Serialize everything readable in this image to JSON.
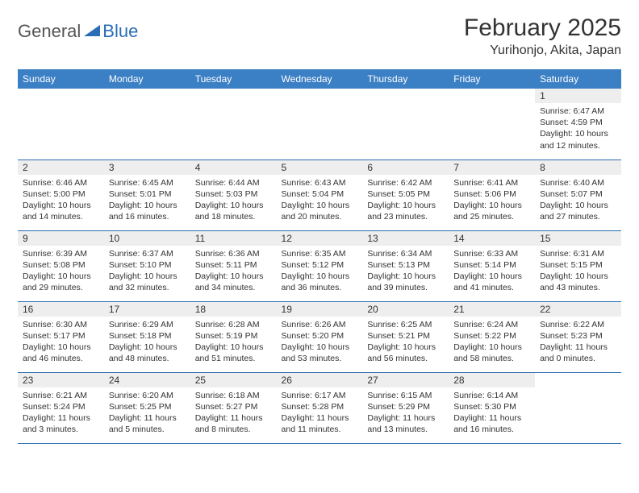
{
  "logo": {
    "text_general": "General",
    "text_blue": "Blue",
    "accent_color": "#2a6db5",
    "text_color": "#555555"
  },
  "header": {
    "title": "February 2025",
    "location": "Yurihonjo, Akita, Japan"
  },
  "calendar": {
    "header_bg": "#3b7fc4",
    "header_fg": "#ffffff",
    "daynum_bg": "#eeeeee",
    "border_color": "#2a6db5",
    "day_names": [
      "Sunday",
      "Monday",
      "Tuesday",
      "Wednesday",
      "Thursday",
      "Friday",
      "Saturday"
    ],
    "weeks": [
      [
        {
          "num": "",
          "sunrise": "",
          "sunset": "",
          "daylight": ""
        },
        {
          "num": "",
          "sunrise": "",
          "sunset": "",
          "daylight": ""
        },
        {
          "num": "",
          "sunrise": "",
          "sunset": "",
          "daylight": ""
        },
        {
          "num": "",
          "sunrise": "",
          "sunset": "",
          "daylight": ""
        },
        {
          "num": "",
          "sunrise": "",
          "sunset": "",
          "daylight": ""
        },
        {
          "num": "",
          "sunrise": "",
          "sunset": "",
          "daylight": ""
        },
        {
          "num": "1",
          "sunrise": "Sunrise: 6:47 AM",
          "sunset": "Sunset: 4:59 PM",
          "daylight": "Daylight: 10 hours and 12 minutes."
        }
      ],
      [
        {
          "num": "2",
          "sunrise": "Sunrise: 6:46 AM",
          "sunset": "Sunset: 5:00 PM",
          "daylight": "Daylight: 10 hours and 14 minutes."
        },
        {
          "num": "3",
          "sunrise": "Sunrise: 6:45 AM",
          "sunset": "Sunset: 5:01 PM",
          "daylight": "Daylight: 10 hours and 16 minutes."
        },
        {
          "num": "4",
          "sunrise": "Sunrise: 6:44 AM",
          "sunset": "Sunset: 5:03 PM",
          "daylight": "Daylight: 10 hours and 18 minutes."
        },
        {
          "num": "5",
          "sunrise": "Sunrise: 6:43 AM",
          "sunset": "Sunset: 5:04 PM",
          "daylight": "Daylight: 10 hours and 20 minutes."
        },
        {
          "num": "6",
          "sunrise": "Sunrise: 6:42 AM",
          "sunset": "Sunset: 5:05 PM",
          "daylight": "Daylight: 10 hours and 23 minutes."
        },
        {
          "num": "7",
          "sunrise": "Sunrise: 6:41 AM",
          "sunset": "Sunset: 5:06 PM",
          "daylight": "Daylight: 10 hours and 25 minutes."
        },
        {
          "num": "8",
          "sunrise": "Sunrise: 6:40 AM",
          "sunset": "Sunset: 5:07 PM",
          "daylight": "Daylight: 10 hours and 27 minutes."
        }
      ],
      [
        {
          "num": "9",
          "sunrise": "Sunrise: 6:39 AM",
          "sunset": "Sunset: 5:08 PM",
          "daylight": "Daylight: 10 hours and 29 minutes."
        },
        {
          "num": "10",
          "sunrise": "Sunrise: 6:37 AM",
          "sunset": "Sunset: 5:10 PM",
          "daylight": "Daylight: 10 hours and 32 minutes."
        },
        {
          "num": "11",
          "sunrise": "Sunrise: 6:36 AM",
          "sunset": "Sunset: 5:11 PM",
          "daylight": "Daylight: 10 hours and 34 minutes."
        },
        {
          "num": "12",
          "sunrise": "Sunrise: 6:35 AM",
          "sunset": "Sunset: 5:12 PM",
          "daylight": "Daylight: 10 hours and 36 minutes."
        },
        {
          "num": "13",
          "sunrise": "Sunrise: 6:34 AM",
          "sunset": "Sunset: 5:13 PM",
          "daylight": "Daylight: 10 hours and 39 minutes."
        },
        {
          "num": "14",
          "sunrise": "Sunrise: 6:33 AM",
          "sunset": "Sunset: 5:14 PM",
          "daylight": "Daylight: 10 hours and 41 minutes."
        },
        {
          "num": "15",
          "sunrise": "Sunrise: 6:31 AM",
          "sunset": "Sunset: 5:15 PM",
          "daylight": "Daylight: 10 hours and 43 minutes."
        }
      ],
      [
        {
          "num": "16",
          "sunrise": "Sunrise: 6:30 AM",
          "sunset": "Sunset: 5:17 PM",
          "daylight": "Daylight: 10 hours and 46 minutes."
        },
        {
          "num": "17",
          "sunrise": "Sunrise: 6:29 AM",
          "sunset": "Sunset: 5:18 PM",
          "daylight": "Daylight: 10 hours and 48 minutes."
        },
        {
          "num": "18",
          "sunrise": "Sunrise: 6:28 AM",
          "sunset": "Sunset: 5:19 PM",
          "daylight": "Daylight: 10 hours and 51 minutes."
        },
        {
          "num": "19",
          "sunrise": "Sunrise: 6:26 AM",
          "sunset": "Sunset: 5:20 PM",
          "daylight": "Daylight: 10 hours and 53 minutes."
        },
        {
          "num": "20",
          "sunrise": "Sunrise: 6:25 AM",
          "sunset": "Sunset: 5:21 PM",
          "daylight": "Daylight: 10 hours and 56 minutes."
        },
        {
          "num": "21",
          "sunrise": "Sunrise: 6:24 AM",
          "sunset": "Sunset: 5:22 PM",
          "daylight": "Daylight: 10 hours and 58 minutes."
        },
        {
          "num": "22",
          "sunrise": "Sunrise: 6:22 AM",
          "sunset": "Sunset: 5:23 PM",
          "daylight": "Daylight: 11 hours and 0 minutes."
        }
      ],
      [
        {
          "num": "23",
          "sunrise": "Sunrise: 6:21 AM",
          "sunset": "Sunset: 5:24 PM",
          "daylight": "Daylight: 11 hours and 3 minutes."
        },
        {
          "num": "24",
          "sunrise": "Sunrise: 6:20 AM",
          "sunset": "Sunset: 5:25 PM",
          "daylight": "Daylight: 11 hours and 5 minutes."
        },
        {
          "num": "25",
          "sunrise": "Sunrise: 6:18 AM",
          "sunset": "Sunset: 5:27 PM",
          "daylight": "Daylight: 11 hours and 8 minutes."
        },
        {
          "num": "26",
          "sunrise": "Sunrise: 6:17 AM",
          "sunset": "Sunset: 5:28 PM",
          "daylight": "Daylight: 11 hours and 11 minutes."
        },
        {
          "num": "27",
          "sunrise": "Sunrise: 6:15 AM",
          "sunset": "Sunset: 5:29 PM",
          "daylight": "Daylight: 11 hours and 13 minutes."
        },
        {
          "num": "28",
          "sunrise": "Sunrise: 6:14 AM",
          "sunset": "Sunset: 5:30 PM",
          "daylight": "Daylight: 11 hours and 16 minutes."
        },
        {
          "num": "",
          "sunrise": "",
          "sunset": "",
          "daylight": ""
        }
      ]
    ]
  }
}
